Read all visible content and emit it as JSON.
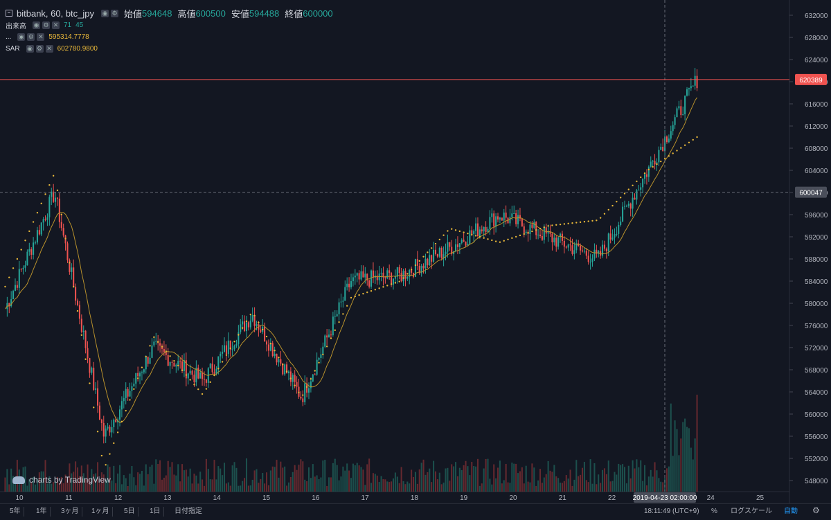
{
  "header": {
    "symbol": "bitbank, 60, btc_jpy",
    "open_label": "始値",
    "open_value": "594648",
    "high_label": "高値",
    "high_value": "600500",
    "low_label": "安値",
    "low_value": "594488",
    "close_label": "終値",
    "close_value": "600000"
  },
  "indicators": [
    {
      "name": "出来高",
      "values": [
        "71",
        "45"
      ]
    },
    {
      "name": "...",
      "values": [
        "595314.7778"
      ]
    },
    {
      "name": "SAR",
      "values": [
        "602780.9800"
      ]
    }
  ],
  "watermark": "charts by TradingView",
  "price_axis": {
    "ticks": [
      "632000",
      "628000",
      "624000",
      "620000",
      "616000",
      "612000",
      "608000",
      "604000",
      "600000",
      "596000",
      "592000",
      "588000",
      "584000",
      "580000",
      "576000",
      "572000",
      "568000",
      "564000",
      "560000",
      "556000",
      "552000",
      "548000"
    ],
    "current_price_label": "620389",
    "crosshair_price_label": "600047"
  },
  "time_axis": {
    "labels": [
      "10",
      "11",
      "12",
      "13",
      "14",
      "15",
      "16",
      "17",
      "18",
      "19",
      "20",
      "21",
      "22",
      "24",
      "25"
    ],
    "crosshair_label": "2019-04-23 02:00:00"
  },
  "bottom_bar": {
    "timeframes": [
      "5年",
      "1年",
      "3ヶ月",
      "1ヶ月",
      "5日",
      "1日",
      "日付指定"
    ],
    "clock": "18:11:49 (UTC+9)",
    "percent": "%",
    "log": "ログスケール",
    "auto": "自動"
  },
  "colors": {
    "up": "#26a69a",
    "down": "#ef5350",
    "sar": "#e8b83a",
    "ma": "#b8912c",
    "price_line": "#ef5350"
  },
  "chart_data": {
    "type": "candlestick",
    "x": [
      "2019-04-10",
      "2019-04-11",
      "2019-04-12",
      "2019-04-13",
      "2019-04-14",
      "2019-04-15",
      "2019-04-16",
      "2019-04-17",
      "2019-04-18",
      "2019-04-19",
      "2019-04-20",
      "2019-04-21",
      "2019-04-22",
      "2019-04-23",
      "2019-04-23 12:00"
    ],
    "close": [
      579000,
      600000,
      556000,
      572000,
      566000,
      578000,
      563000,
      584000,
      585000,
      590000,
      596000,
      592000,
      588000,
      604000,
      620389
    ],
    "sar": [
      583000,
      603500,
      550000,
      574000,
      563500,
      578500,
      563000,
      581000,
      584000,
      593500,
      591000,
      594000,
      595000,
      604000,
      610000
    ],
    "ylim": [
      546000,
      634000
    ],
    "last_ohlc": {
      "open": 594648,
      "high": 600500,
      "low": 594488,
      "close": 600000
    }
  }
}
